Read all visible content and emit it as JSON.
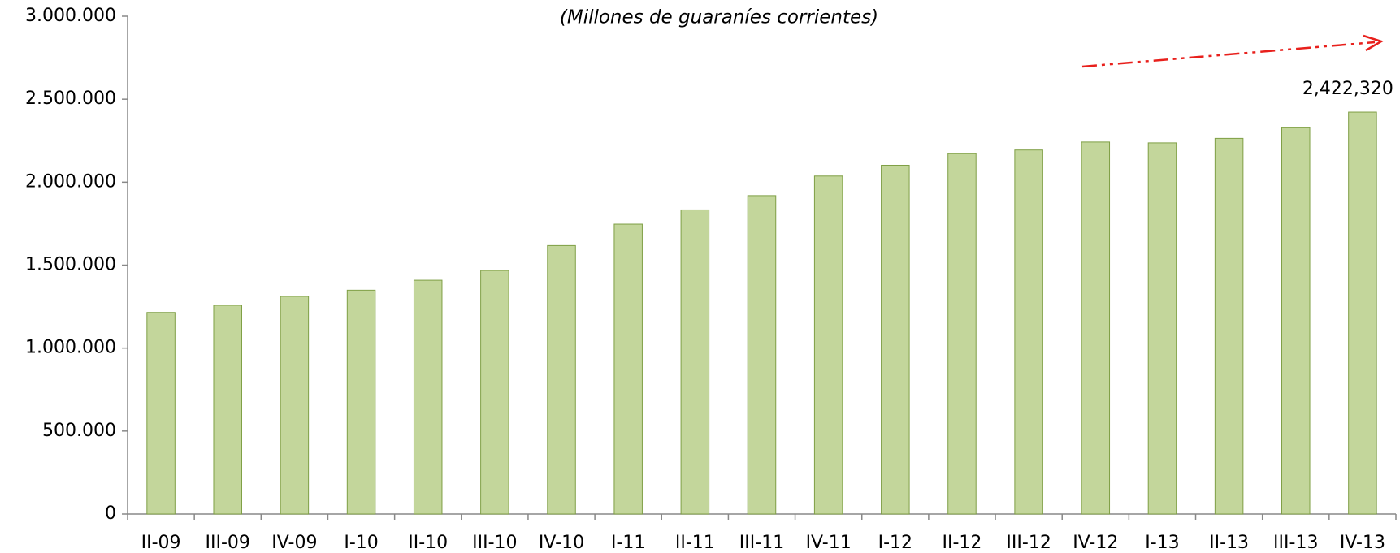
{
  "chart_data": {
    "type": "bar",
    "subtitle": "(Millones de guaraníes corrientes)",
    "categories": [
      "II-09",
      "III-09",
      "IV-09",
      "I-10",
      "II-10",
      "III-10",
      "IV-10",
      "I-11",
      "II-11",
      "III-11",
      "IV-11",
      "I-12",
      "II-12",
      "III-12",
      "IV-12",
      "I-13",
      "II-13",
      "III-13",
      "IV-13"
    ],
    "values": [
      1215000,
      1258000,
      1312000,
      1349000,
      1409000,
      1468000,
      1618000,
      1747000,
      1833000,
      1919000,
      2037000,
      2102000,
      2172000,
      2194000,
      2242000,
      2237000,
      2264000,
      2328000,
      2422320
    ],
    "value_labels": [
      null,
      null,
      null,
      null,
      null,
      null,
      null,
      null,
      null,
      null,
      null,
      null,
      null,
      null,
      null,
      null,
      null,
      null,
      "2,422,320"
    ],
    "color": "#c3d69b",
    "ylim": [
      0,
      3000000
    ],
    "yticks": [
      0,
      {
        "value": 500000,
        "label": "500.000"
      },
      {
        "value": 1000000,
        "label": "1.000.000"
      },
      {
        "value": 1500000,
        "label": "1.500.000"
      },
      {
        "value": 2000000,
        "label": "2.000.000"
      },
      {
        "value": 2500000,
        "label": "2.500.000"
      },
      {
        "value": 3000000,
        "label": "3.000.000"
      }
    ],
    "grid": false
  }
}
